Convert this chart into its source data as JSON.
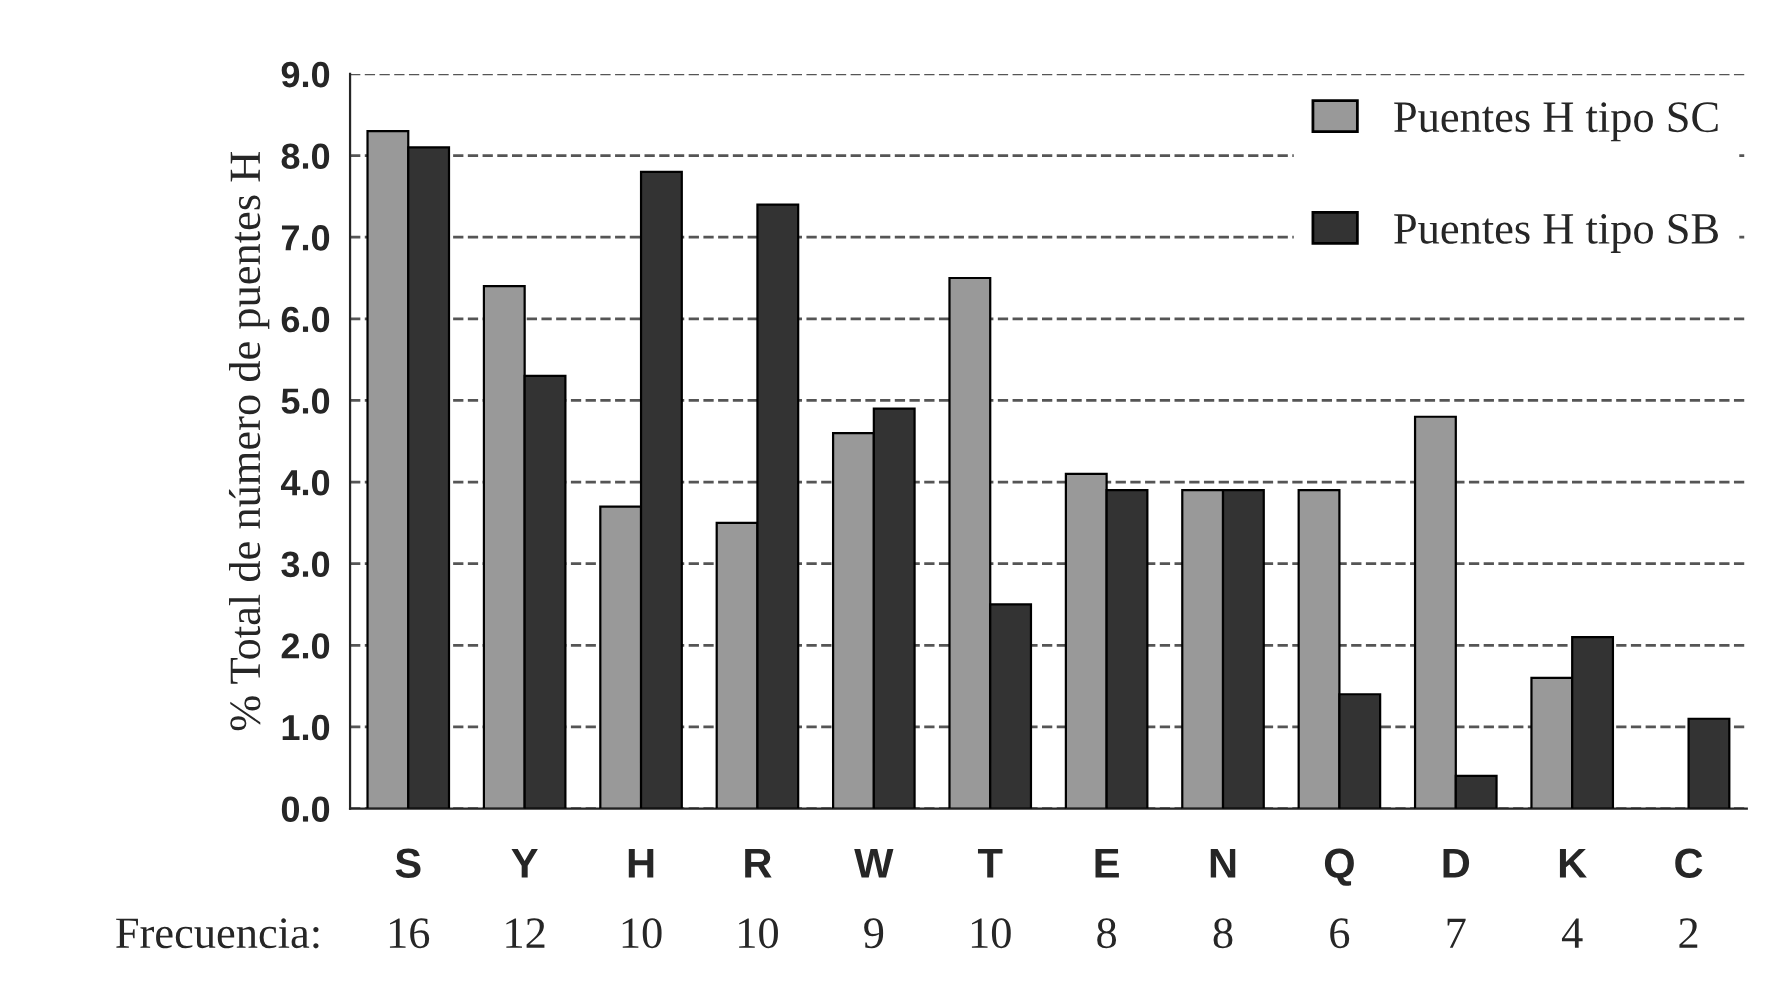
{
  "chart_data": {
    "type": "bar",
    "ylabel": "% Total de número de puentes H",
    "categories": [
      "S",
      "Y",
      "H",
      "R",
      "W",
      "T",
      "E",
      "N",
      "Q",
      "D",
      "K",
      "C"
    ],
    "series": [
      {
        "name": "Puentes H tipo SC",
        "color": "#999999",
        "values": [
          8.3,
          6.4,
          3.7,
          3.5,
          4.6,
          6.5,
          4.1,
          3.9,
          3.9,
          4.8,
          1.6,
          null
        ]
      },
      {
        "name": "Puentes H tipo SB",
        "color": "#333333",
        "values": [
          8.1,
          5.3,
          7.8,
          7.4,
          4.9,
          2.5,
          3.9,
          3.9,
          1.4,
          0.4,
          2.1,
          1.1
        ]
      }
    ],
    "ylim": [
      0,
      9
    ],
    "yticks": [
      {
        "value": 0,
        "label": "0.0"
      },
      {
        "value": 1,
        "label": "1.0"
      },
      {
        "value": 2,
        "label": "2.0"
      },
      {
        "value": 3,
        "label": "3.0"
      },
      {
        "value": 4,
        "label": "4.0"
      },
      {
        "value": 5,
        "label": "5.0"
      },
      {
        "value": 6,
        "label": "6.0"
      },
      {
        "value": 7,
        "label": "7.0"
      },
      {
        "value": 8,
        "label": "8.0"
      },
      {
        "value": 9,
        "label": "9.0"
      }
    ],
    "grid": "y",
    "legend": "top right",
    "annotations": [
      "Frecuencia:",
      "16",
      "12",
      "10",
      "10",
      "9",
      "10",
      "8",
      "8",
      "6",
      "7",
      "4",
      "2"
    ]
  }
}
